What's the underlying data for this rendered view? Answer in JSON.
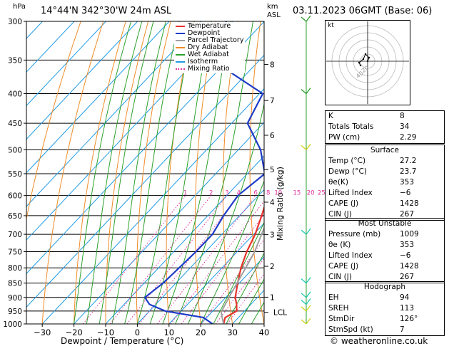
{
  "header": {
    "unit_p": "hPa",
    "location": "14°44'N  342°30'W  24m  ASL",
    "km_label": "km",
    "asl_label": "ASL",
    "datetime": "03.11.2023  06GMT  (Base: 06)"
  },
  "footer": {
    "credit": "© weatheronline.co.uk"
  },
  "legend": {
    "items": [
      {
        "label": "Temperature",
        "color": "#e8322c",
        "style": "solid"
      },
      {
        "label": "Dewpoint",
        "color": "#1e3cc8",
        "style": "solid"
      },
      {
        "label": "Parcel Trajectory",
        "color": "#a0a0a0",
        "style": "solid"
      },
      {
        "label": "Dry Adiabat",
        "color": "#f08c28",
        "style": "solid"
      },
      {
        "label": "Wet Adiabat",
        "color": "#2ca02c",
        "style": "solid"
      },
      {
        "label": "Isotherm",
        "color": "#1e9be6",
        "style": "solid"
      },
      {
        "label": "Mixing Ratio",
        "color": "#e0309c",
        "style": "dotted"
      }
    ]
  },
  "chart_data": {
    "type": "line",
    "xlabel": "Dewpoint / Temperature (°C)",
    "ylabel": "hPa",
    "right_axis_label": "Mixing Ratio (g/kg)",
    "xlim": [
      -35,
      40
    ],
    "x_ticks": [
      -30,
      -20,
      -10,
      0,
      10,
      20,
      30,
      40
    ],
    "x_tick_labels": [
      "−30",
      "−20",
      "−10",
      "0",
      "10",
      "20",
      "30",
      "40"
    ],
    "pressure_levels": [
      300,
      350,
      400,
      450,
      500,
      550,
      600,
      650,
      700,
      750,
      800,
      850,
      900,
      950,
      1000
    ],
    "pressure_labels": [
      "300",
      "350",
      "400",
      "450",
      "500",
      "550",
      "600",
      "650",
      "700",
      "750",
      "800",
      "850",
      "900",
      "950",
      "1000"
    ],
    "ylim": [
      1000,
      300
    ],
    "km_ticks": [
      {
        "km": "8",
        "p": 356
      },
      {
        "km": "7",
        "p": 411
      },
      {
        "km": "6",
        "p": 472
      },
      {
        "km": "5",
        "p": 541
      },
      {
        "km": "4",
        "p": 616
      },
      {
        "km": "3",
        "p": 701
      },
      {
        "km": "2",
        "p": 795
      },
      {
        "km": "1",
        "p": 899
      }
    ],
    "lcl": {
      "label": "LCL",
      "p": 955
    },
    "mixing_ratio_labels": [
      {
        "label": "1",
        "w": 1
      },
      {
        "label": "2",
        "w": 2
      },
      {
        "label": "3",
        "w": 3
      },
      {
        "label": "4",
        "w": 4
      },
      {
        "label": "6",
        "w": 6
      },
      {
        "label": "8",
        "w": 8
      },
      {
        "label": "10",
        "w": 10
      },
      {
        "label": "15",
        "w": 15
      },
      {
        "label": "20",
        "w": 20
      },
      {
        "label": "25",
        "w": 25
      }
    ],
    "series": [
      {
        "name": "Temperature",
        "color": "#e8322c",
        "p": [
          1000,
          975,
          950,
          925,
          900,
          850,
          800,
          750,
          700,
          650,
          600,
          550,
          500,
          450,
          400,
          350,
          300
        ],
        "t": [
          27.2,
          25.8,
          27.5,
          25.5,
          23.0,
          19.5,
          16.0,
          13.0,
          10.5,
          7.0,
          3.0,
          -3.0,
          -7.5,
          -15.0,
          -22.0,
          -32.0,
          -41.0
        ]
      },
      {
        "name": "Dewpoint",
        "color": "#1e3cc8",
        "p": [
          1000,
          975,
          950,
          925,
          900,
          850,
          800,
          750,
          700,
          650,
          600,
          550,
          500,
          450,
          400,
          350,
          300
        ],
        "t": [
          23.7,
          19.0,
          5.0,
          -2.0,
          -5.5,
          -4.0,
          -3.5,
          -3.0,
          -3.0,
          -5.0,
          -6.5,
          -4.5,
          -13.0,
          -25.0,
          -29.0,
          -55.0,
          -62.0
        ]
      },
      {
        "name": "Parcel Trajectory",
        "color": "#a0a0a0",
        "p": [
          1000,
          955,
          900,
          850,
          800,
          750,
          700,
          650,
          600,
          550,
          500,
          450,
          400,
          350
        ],
        "t": [
          27.2,
          23.0,
          21.0,
          19.3,
          17.5,
          15.5,
          12.5,
          9.5,
          6.0,
          2.0,
          -2.5,
          -8.0,
          -15.0,
          -23.0
        ]
      }
    ]
  },
  "hodograph": {
    "unit_label": "kt",
    "ring_labels": [
      "20",
      "40"
    ],
    "points": [
      [
        0,
        0
      ],
      [
        2,
        5
      ],
      [
        -3,
        10
      ],
      [
        -6,
        3
      ],
      [
        -12,
        -2
      ],
      [
        -10,
        -6
      ]
    ]
  },
  "indices": {
    "general": [
      {
        "name": "K",
        "value": "8"
      },
      {
        "name": "Totals Totals",
        "value": "34"
      },
      {
        "name": "PW (cm)",
        "value": "2.29"
      }
    ],
    "surface_title": "Surface",
    "surface": [
      {
        "name": "Temp (°C)",
        "value": "27.2"
      },
      {
        "name": "Dewp (°C)",
        "value": "23.7"
      },
      {
        "name": "θe(K)",
        "value": "353"
      },
      {
        "name": "Lifted Index",
        "value": "−6"
      },
      {
        "name": "CAPE (J)",
        "value": "1428"
      },
      {
        "name": "CIN (J)",
        "value": "267"
      }
    ],
    "unstable_title": "Most Unstable",
    "unstable": [
      {
        "name": "Pressure (mb)",
        "value": "1009"
      },
      {
        "name": "θe (K)",
        "value": "353"
      },
      {
        "name": "Lifted Index",
        "value": "−6"
      },
      {
        "name": "CAPE (J)",
        "value": "1428"
      },
      {
        "name": "CIN (J)",
        "value": "267"
      }
    ],
    "hodo_title": "Hodograph",
    "hodo": [
      {
        "name": "EH",
        "value": "94"
      },
      {
        "name": "SREH",
        "value": "113"
      },
      {
        "name": "StmDir",
        "value": "126°"
      },
      {
        "name": "StmSpd (kt)",
        "value": "7"
      }
    ]
  },
  "wind_barbs": [
    {
      "p": 300,
      "color": "#2ca02c"
    },
    {
      "p": 400,
      "color": "#2ca02c"
    },
    {
      "p": 500,
      "color": "#d2d21e"
    },
    {
      "p": 700,
      "color": "#1ec8b4"
    },
    {
      "p": 850,
      "color": "#1ec8b4"
    },
    {
      "p": 900,
      "color": "#1ec8b4"
    },
    {
      "p": 925,
      "color": "#1ec8b4"
    },
    {
      "p": 950,
      "color": "#d2d21e"
    },
    {
      "p": 1000,
      "color": "#d2d21e"
    }
  ]
}
